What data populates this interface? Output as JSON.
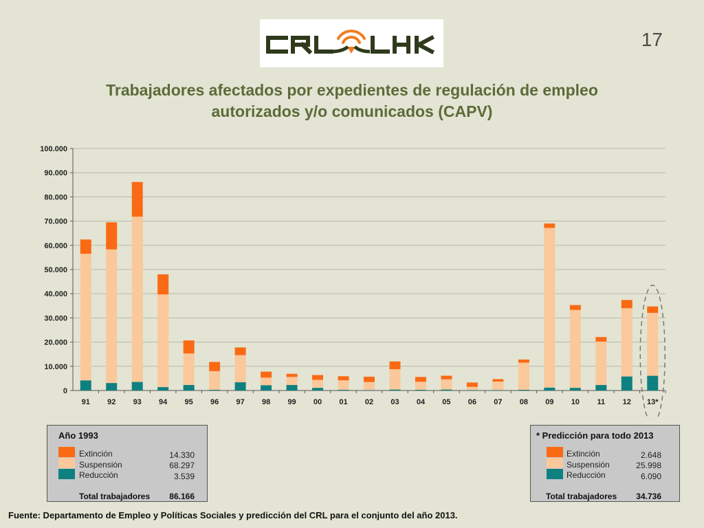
{
  "logo": {
    "text": "CRL LHK"
  },
  "page_number": "17",
  "title_line1": "Trabajadores afectados por expedientes de regulación de empleo",
  "title_line2": "autorizados y/o comunicados (CAPV)",
  "colors": {
    "extincion": "#fa6a14",
    "suspension": "#fbc89b",
    "reduccion": "#0f8080",
    "ellipse": "#777777"
  },
  "chart_data": {
    "type": "bar",
    "stacked": true,
    "title": "Trabajadores afectados por expedientes de regulación de empleo autorizados y/o comunicados (CAPV)",
    "xlabel": "",
    "ylabel": "",
    "ylim": [
      0,
      100000
    ],
    "yticks": [
      "0",
      "10.000",
      "20.000",
      "30.000",
      "40.000",
      "50.000",
      "60.000",
      "70.000",
      "80.000",
      "90.000",
      "100.000"
    ],
    "grid": true,
    "categories": [
      "91",
      "92",
      "93",
      "94",
      "95",
      "96",
      "97",
      "98",
      "99",
      "00",
      "01",
      "02",
      "03",
      "04",
      "05",
      "06",
      "07",
      "08",
      "09",
      "10",
      "11",
      "12",
      "13*"
    ],
    "series": [
      {
        "name": "Reducción",
        "values": [
          4200,
          3100,
          3539,
          1400,
          2300,
          300,
          3400,
          2200,
          2300,
          1100,
          300,
          200,
          400,
          300,
          400,
          200,
          200,
          300,
          1200,
          1100,
          2300,
          5800,
          6090
        ]
      },
      {
        "name": "Suspensión",
        "values": [
          52300,
          55200,
          68297,
          38300,
          13000,
          7700,
          11200,
          3100,
          3300,
          3300,
          3900,
          3300,
          8400,
          3300,
          4200,
          1300,
          3500,
          11200,
          66000,
          32200,
          17900,
          28200,
          25998
        ]
      },
      {
        "name": "Extinción",
        "values": [
          5900,
          11200,
          14330,
          8300,
          5400,
          3800,
          3200,
          2500,
          1300,
          2000,
          1700,
          2200,
          3200,
          2000,
          1500,
          1800,
          1000,
          1300,
          1800,
          2000,
          1900,
          3400,
          2648
        ]
      }
    ],
    "highlight": "13*"
  },
  "legend_1993": {
    "title": "Año 1993",
    "items": [
      {
        "label": "Extinción",
        "value": "14.330"
      },
      {
        "label": "Suspensión",
        "value": "68.297"
      },
      {
        "label": "Reducción",
        "value": "3.539"
      }
    ],
    "total_label": "Total trabajadores",
    "total_value": "86.166"
  },
  "legend_2013": {
    "title": "* Predicción para todo 2013",
    "items": [
      {
        "label": "Extinción",
        "value": "2.648"
      },
      {
        "label": "Suspensión",
        "value": "25.998"
      },
      {
        "label": "Reducción",
        "value": "6.090"
      }
    ],
    "total_label": "Total trabajadores",
    "total_value": "34.736"
  },
  "source": "Fuente: Departamento de Empleo y Políticas Sociales y predicción del CRL para el conjunto del año 2013."
}
